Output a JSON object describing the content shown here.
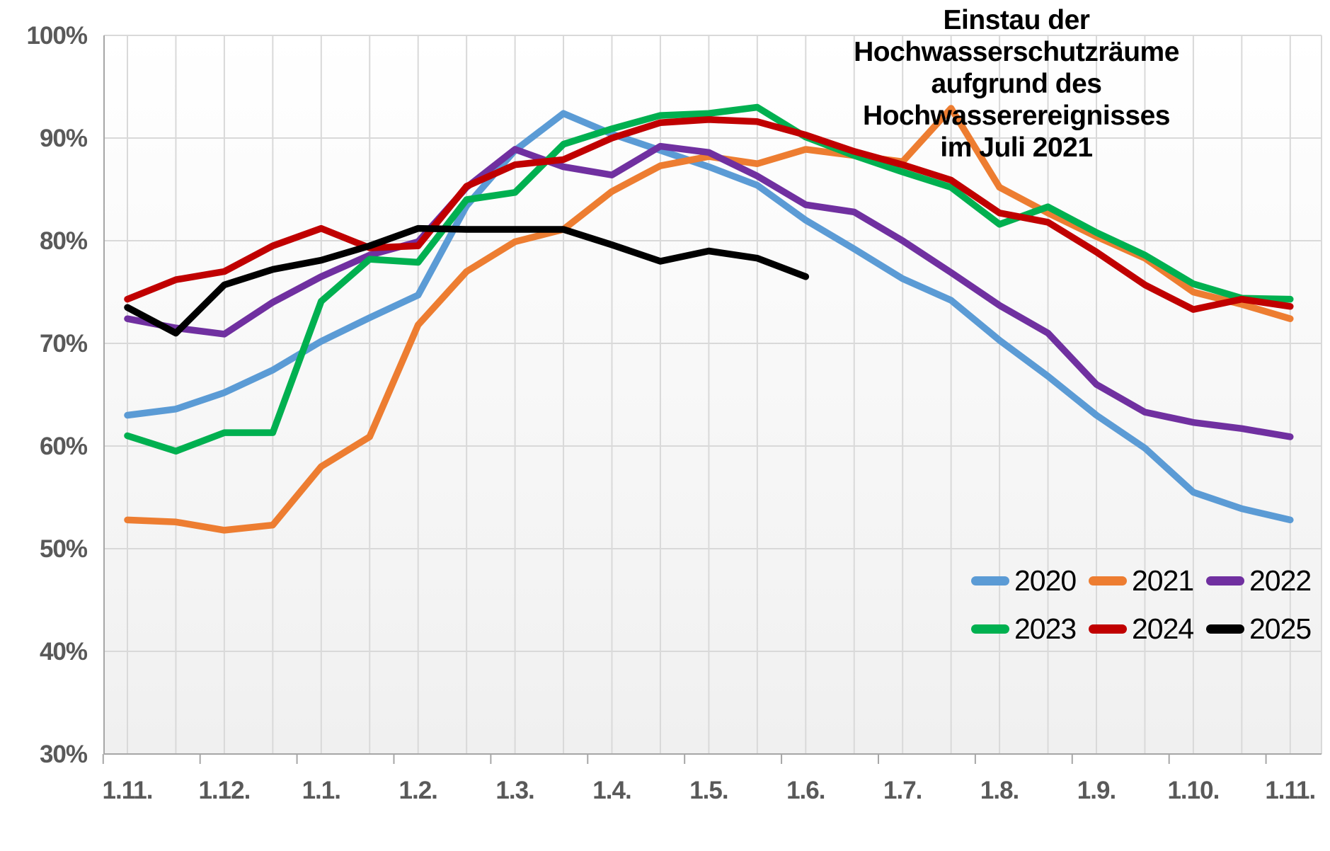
{
  "chart_data": {
    "type": "line",
    "title": "Einstau der Hochwasserschutzräume aufgrund des Hochwasserereignisses im Juli 2021",
    "title_lines": [
      "Einstau der Hochwasserschutzräume",
      "aufgrund des Hochwasserereignisses",
      "im Juli 2021"
    ],
    "x": [
      "1.11.",
      "16.11.",
      "1.12.",
      "16.12.",
      "1.1.",
      "16.1.",
      "1.2.",
      "16.2.",
      "1.3.",
      "16.3.",
      "1.4.",
      "16.4.",
      "1.5.",
      "16.5.",
      "1.6.",
      "16.6.",
      "1.7.",
      "16.7.",
      "1.8.",
      "16.8.",
      "1.9.",
      "16.9.",
      "1.10.",
      "16.10.",
      "1.11."
    ],
    "x_tick_labels": [
      "1.11.",
      "1.12.",
      "1.1.",
      "1.2.",
      "1.3.",
      "1.4.",
      "1.5.",
      "1.6.",
      "1.7.",
      "1.8.",
      "1.9.",
      "1.10.",
      "1.11."
    ],
    "x_tick_every": 2,
    "y_ticks": [
      "100%",
      "90%",
      "80%",
      "70%",
      "60%",
      "50%",
      "40%",
      "30%"
    ],
    "y_tick_values": [
      100,
      90,
      80,
      70,
      60,
      50,
      40,
      30
    ],
    "ylim": [
      30,
      100
    ],
    "grid": true,
    "legend_position": "inside-bottom-right",
    "unit": "%",
    "series": [
      {
        "name": "2020",
        "color": "#5B9BD5",
        "values": [
          63.0,
          63.6,
          65.2,
          67.4,
          70.2,
          72.5,
          74.7,
          83.4,
          88.8,
          92.4,
          90.4,
          88.8,
          87.2,
          85.4,
          82.0,
          79.2,
          76.3,
          74.2,
          70.3,
          66.8,
          63.0,
          59.8,
          55.5,
          53.9,
          52.8
        ]
      },
      {
        "name": "2021",
        "color": "#ED7D31",
        "values": [
          52.8,
          52.6,
          51.8,
          52.3,
          58.0,
          60.9,
          71.8,
          77.0,
          79.9,
          81.1,
          84.8,
          87.3,
          88.2,
          87.5,
          88.9,
          88.3,
          87.7,
          92.9,
          85.2,
          82.7,
          80.4,
          78.3,
          75.0,
          73.8,
          72.4
        ]
      },
      {
        "name": "2022",
        "color": "#7030A0",
        "values": [
          72.4,
          71.5,
          70.9,
          74.0,
          76.5,
          78.6,
          79.9,
          85.2,
          88.9,
          87.2,
          86.4,
          89.2,
          88.6,
          86.3,
          83.5,
          82.8,
          80.0,
          76.9,
          73.7,
          71.0,
          66.0,
          63.3,
          62.3,
          61.7,
          60.9
        ]
      },
      {
        "name": "2023",
        "color": "#00B050",
        "values": [
          61.0,
          59.5,
          61.3,
          61.3,
          74.1,
          78.2,
          77.9,
          84.0,
          84.7,
          89.4,
          90.9,
          92.2,
          92.4,
          93.0,
          90.1,
          88.3,
          86.7,
          85.2,
          81.6,
          83.3,
          80.8,
          78.6,
          75.8,
          74.4,
          74.3
        ]
      },
      {
        "name": "2024",
        "color": "#C00000",
        "values": [
          74.3,
          76.2,
          77.0,
          79.5,
          81.2,
          79.3,
          79.5,
          85.3,
          87.4,
          87.9,
          90.0,
          91.5,
          91.8,
          91.6,
          90.3,
          88.7,
          87.4,
          85.9,
          82.7,
          81.8,
          78.9,
          75.7,
          73.3,
          74.3,
          73.6
        ]
      },
      {
        "name": "2025",
        "color": "#000000",
        "values": [
          73.5,
          71.0,
          75.7,
          77.2,
          78.1,
          79.5,
          81.2,
          81.1,
          81.1,
          81.1,
          79.6,
          78.0,
          79.0,
          78.3,
          76.5,
          null,
          null,
          null,
          null,
          null,
          null,
          null,
          null,
          null,
          null
        ]
      }
    ]
  },
  "style": {
    "gridline_color": "#d9d9d9",
    "axis_color": "#a6a6a6",
    "tick_label_color": "#595959",
    "plot_bg_top": "#ffffff",
    "plot_bg_bottom": "#f0f0f0"
  }
}
